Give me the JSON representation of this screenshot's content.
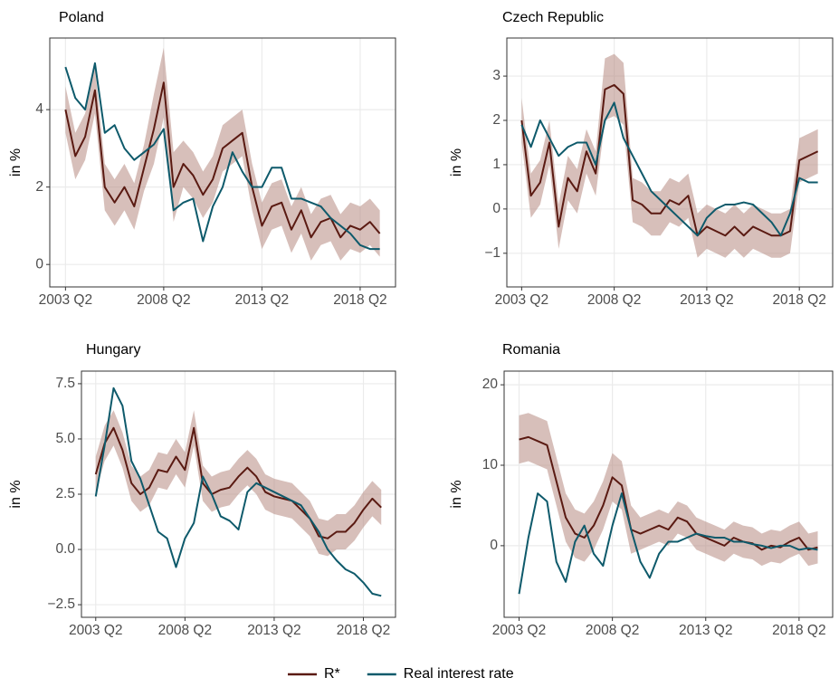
{
  "chart_data": [
    {
      "type": "line",
      "title": "Poland",
      "ylabel": "in %",
      "x": [
        2003.25,
        2003.75,
        2004.25,
        2004.75,
        2005.25,
        2005.75,
        2006.25,
        2006.75,
        2007.25,
        2007.75,
        2008.25,
        2008.75,
        2009.25,
        2009.75,
        2010.25,
        2010.75,
        2011.25,
        2011.75,
        2012.25,
        2012.75,
        2013.25,
        2013.75,
        2014.25,
        2014.75,
        2015.25,
        2015.75,
        2016.25,
        2016.75,
        2017.25,
        2017.75,
        2018.25,
        2018.75,
        2019.25
      ],
      "xlim": [
        2002.45,
        2020.05
      ],
      "xticks": [
        {
          "value": 2003.25,
          "label": "2003 Q2"
        },
        {
          "value": 2008.25,
          "label": "2008 Q2"
        },
        {
          "value": 2013.25,
          "label": "2013 Q2"
        },
        {
          "value": 2018.25,
          "label": "2018 Q2"
        }
      ],
      "ylim": [
        -0.58,
        5.85
      ],
      "yticks": [
        0,
        2,
        4
      ],
      "grid": true,
      "series": [
        {
          "name": "R*",
          "color": "#5a1a12",
          "band_color": "#b68a82",
          "values": [
            4.0,
            2.8,
            3.3,
            4.5,
            2.0,
            1.6,
            2.0,
            1.5,
            2.5,
            3.5,
            4.7,
            2.0,
            2.6,
            2.3,
            1.8,
            2.2,
            3.0,
            3.2,
            3.4,
            2.0,
            1.0,
            1.5,
            1.6,
            0.9,
            1.4,
            0.7,
            1.1,
            1.2,
            0.7,
            1.0,
            0.9,
            1.1,
            0.8
          ],
          "upper": [
            4.6,
            3.4,
            3.9,
            5.1,
            2.6,
            2.2,
            2.6,
            2.1,
            3.1,
            4.4,
            5.6,
            2.9,
            3.2,
            2.9,
            2.4,
            2.8,
            3.6,
            3.8,
            4.0,
            2.6,
            1.6,
            2.1,
            2.2,
            1.5,
            2.0,
            1.3,
            1.7,
            1.8,
            1.3,
            1.6,
            1.5,
            1.7,
            1.4
          ],
          "lower": [
            3.4,
            2.2,
            2.7,
            3.9,
            1.4,
            1.0,
            1.4,
            0.9,
            1.9,
            2.6,
            3.8,
            1.1,
            2.0,
            1.7,
            1.2,
            1.6,
            2.4,
            2.6,
            2.8,
            1.4,
            0.4,
            0.9,
            1.0,
            0.3,
            0.8,
            0.1,
            0.5,
            0.6,
            0.1,
            0.4,
            0.3,
            0.5,
            0.2
          ]
        },
        {
          "name": "Real interest rate",
          "color": "#0e5a6b",
          "values": [
            5.1,
            4.3,
            4.0,
            5.2,
            3.4,
            3.6,
            3.0,
            2.7,
            2.9,
            3.1,
            3.5,
            1.4,
            1.6,
            1.7,
            0.6,
            1.5,
            2.0,
            2.9,
            2.4,
            2.0,
            2.0,
            2.5,
            2.5,
            1.7,
            1.7,
            1.6,
            1.5,
            1.2,
            1.0,
            0.8,
            0.5,
            0.4,
            0.4
          ]
        }
      ]
    },
    {
      "type": "line",
      "title": "Czech Republic",
      "ylabel": "in %",
      "x": [
        2003.25,
        2003.75,
        2004.25,
        2004.75,
        2005.25,
        2005.75,
        2006.25,
        2006.75,
        2007.25,
        2007.75,
        2008.25,
        2008.75,
        2009.25,
        2009.75,
        2010.25,
        2010.75,
        2011.25,
        2011.75,
        2012.25,
        2012.75,
        2013.25,
        2013.75,
        2014.25,
        2014.75,
        2015.25,
        2015.75,
        2016.25,
        2016.75,
        2017.25,
        2017.75,
        2018.25,
        2018.75,
        2019.25
      ],
      "xlim": [
        2002.45,
        2020.05
      ],
      "xticks": [
        {
          "value": 2003.25,
          "label": "2003 Q2"
        },
        {
          "value": 2008.25,
          "label": "2008 Q2"
        },
        {
          "value": 2013.25,
          "label": "2013 Q2"
        },
        {
          "value": 2018.25,
          "label": "2018 Q2"
        }
      ],
      "ylim": [
        -1.76,
        3.86
      ],
      "yticks": [
        {
          "value": -1,
          "label": "−1"
        },
        0,
        1,
        2,
        3
      ],
      "grid": true,
      "series": [
        {
          "name": "R*",
          "color": "#5a1a12",
          "band_color": "#b68a82",
          "values": [
            2.0,
            0.3,
            0.6,
            1.5,
            -0.4,
            0.7,
            0.4,
            1.3,
            0.8,
            2.7,
            2.8,
            2.6,
            0.2,
            0.1,
            -0.1,
            -0.1,
            0.2,
            0.1,
            0.3,
            -0.6,
            -0.4,
            -0.5,
            -0.6,
            -0.4,
            -0.6,
            -0.4,
            -0.5,
            -0.6,
            -0.6,
            -0.5,
            1.1,
            1.2,
            1.3
          ],
          "upper": [
            2.5,
            0.8,
            1.1,
            2.0,
            0.1,
            1.2,
            0.9,
            1.8,
            1.3,
            3.4,
            3.5,
            3.3,
            0.7,
            0.6,
            0.4,
            0.4,
            0.7,
            0.6,
            0.8,
            -0.1,
            0.1,
            0,
            -0.1,
            0.1,
            -0.1,
            0.1,
            0,
            -0.1,
            -0.1,
            0,
            1.6,
            1.7,
            1.8
          ],
          "lower": [
            1.5,
            -0.2,
            0.1,
            1.0,
            -0.9,
            0.2,
            -0.1,
            0.8,
            0.3,
            2.0,
            2.1,
            1.9,
            -0.3,
            -0.4,
            -0.6,
            -0.6,
            -0.3,
            -0.4,
            -0.2,
            -1.1,
            -0.9,
            -1.0,
            -1.1,
            -0.9,
            -1.1,
            -0.9,
            -1.0,
            -1.1,
            -1.1,
            -1.0,
            0.6,
            0.7,
            0.8
          ]
        },
        {
          "name": "Real interest rate",
          "color": "#0e5a6b",
          "values": [
            1.9,
            1.4,
            2.0,
            1.6,
            1.2,
            1.4,
            1.5,
            1.5,
            1.0,
            2.0,
            2.4,
            1.6,
            1.2,
            0.8,
            0.4,
            0.2,
            0.0,
            -0.2,
            -0.4,
            -0.6,
            -0.2,
            0.0,
            0.1,
            0.1,
            0.15,
            0.1,
            -0.1,
            -0.3,
            -0.6,
            -0.1,
            0.7,
            0.6,
            0.6
          ]
        }
      ]
    },
    {
      "type": "line",
      "title": "Hungary",
      "ylabel": "in %",
      "x": [
        2003.25,
        2003.75,
        2004.25,
        2004.75,
        2005.25,
        2005.75,
        2006.25,
        2006.75,
        2007.25,
        2007.75,
        2008.25,
        2008.75,
        2009.25,
        2009.75,
        2010.25,
        2010.75,
        2011.25,
        2011.75,
        2012.25,
        2012.75,
        2013.25,
        2013.75,
        2014.25,
        2014.75,
        2015.25,
        2015.75,
        2016.25,
        2016.75,
        2017.25,
        2017.75,
        2018.25,
        2018.75,
        2019.25
      ],
      "xlim": [
        2002.45,
        2020.05
      ],
      "xticks": [
        {
          "value": 2003.25,
          "label": "2003 Q2"
        },
        {
          "value": 2008.25,
          "label": "2008 Q2"
        },
        {
          "value": 2013.25,
          "label": "2013 Q2"
        },
        {
          "value": 2018.25,
          "label": "2018 Q2"
        }
      ],
      "ylim": [
        -3.07,
        8.07
      ],
      "yticks": [
        {
          "value": -2.5,
          "label": "−2.5"
        },
        {
          "value": 0,
          "label": "0.0"
        },
        2.5,
        {
          "value": 5,
          "label": "5.0"
        },
        7.5
      ],
      "grid": true,
      "series": [
        {
          "name": "R*",
          "color": "#5a1a12",
          "band_color": "#b68a82",
          "values": [
            3.4,
            4.8,
            5.5,
            4.5,
            3.0,
            2.5,
            2.8,
            3.6,
            3.5,
            4.2,
            3.6,
            5.5,
            3.0,
            2.5,
            2.7,
            2.8,
            3.3,
            3.7,
            3.3,
            2.6,
            2.4,
            2.3,
            2.2,
            1.8,
            1.4,
            0.6,
            0.5,
            0.8,
            0.8,
            1.2,
            1.8,
            2.3,
            1.9
          ],
          "upper": [
            4.2,
            5.6,
            6.3,
            5.3,
            3.8,
            3.3,
            3.6,
            4.4,
            4.3,
            5.0,
            4.4,
            6.3,
            3.8,
            3.3,
            3.5,
            3.6,
            4.1,
            4.5,
            4.1,
            3.4,
            3.2,
            3.1,
            3.0,
            2.6,
            2.2,
            1.4,
            1.3,
            1.6,
            1.6,
            2.0,
            2.6,
            3.1,
            2.7
          ],
          "lower": [
            2.6,
            4.0,
            4.7,
            3.7,
            2.2,
            1.7,
            2.0,
            2.8,
            2.7,
            3.4,
            2.8,
            4.7,
            2.2,
            1.7,
            1.9,
            2.0,
            2.5,
            2.9,
            2.5,
            1.8,
            1.6,
            1.5,
            1.4,
            1.0,
            0.6,
            -0.2,
            -0.3,
            0,
            0,
            0.4,
            1.0,
            1.5,
            1.1
          ]
        },
        {
          "name": "Real interest rate",
          "color": "#0e5a6b",
          "values": [
            2.4,
            4.7,
            7.3,
            6.5,
            4.0,
            3.2,
            2.0,
            0.8,
            0.5,
            -0.8,
            0.5,
            1.2,
            3.3,
            2.5,
            1.5,
            1.3,
            0.9,
            2.6,
            3.0,
            2.8,
            2.6,
            2.4,
            2.2,
            2.0,
            1.4,
            0.8,
            0.0,
            -0.5,
            -0.9,
            -1.1,
            -1.5,
            -2.0,
            -2.1
          ]
        }
      ]
    },
    {
      "type": "line",
      "title": "Romania",
      "ylabel": "in %",
      "x": [
        2003.25,
        2003.75,
        2004.25,
        2004.75,
        2005.25,
        2005.75,
        2006.25,
        2006.75,
        2007.25,
        2007.75,
        2008.25,
        2008.75,
        2009.25,
        2009.75,
        2010.25,
        2010.75,
        2011.25,
        2011.75,
        2012.25,
        2012.75,
        2013.25,
        2013.75,
        2014.25,
        2014.75,
        2015.25,
        2015.75,
        2016.25,
        2016.75,
        2017.25,
        2017.75,
        2018.25,
        2018.75,
        2019.25
      ],
      "xlim": [
        2002.45,
        2020.05
      ],
      "xticks": [
        {
          "value": 2003.25,
          "label": "2003 Q2"
        },
        {
          "value": 2008.25,
          "label": "2008 Q2"
        },
        {
          "value": 2013.25,
          "label": "2013 Q2"
        },
        {
          "value": 2018.25,
          "label": "2018 Q2"
        }
      ],
      "ylim": [
        -8.9,
        21.7
      ],
      "yticks": [
        0,
        10,
        20
      ],
      "grid": true,
      "series": [
        {
          "name": "R*",
          "color": "#5a1a12",
          "band_color": "#b68a82",
          "values": [
            13.2,
            13.5,
            13.0,
            12.5,
            8.0,
            3.5,
            1.5,
            1.0,
            2.5,
            5.0,
            8.5,
            7.5,
            2.0,
            1.5,
            2.0,
            2.5,
            2.0,
            3.5,
            3.0,
            1.5,
            1.0,
            0.5,
            0.0,
            1.0,
            0.5,
            0.3,
            -0.5,
            0.0,
            -0.2,
            0.5,
            1.0,
            -0.5,
            -0.2
          ],
          "upper": [
            16.2,
            16.5,
            16.0,
            15.5,
            11.0,
            6.5,
            4.5,
            4.0,
            5.5,
            8.0,
            11.5,
            10.5,
            5.0,
            3.5,
            4.0,
            4.5,
            4.0,
            5.5,
            5.0,
            3.5,
            3.0,
            2.5,
            2.0,
            3.0,
            2.5,
            2.3,
            1.5,
            2.0,
            1.8,
            2.5,
            3.0,
            1.5,
            1.8
          ],
          "lower": [
            10.2,
            10.5,
            10.0,
            9.5,
            5.0,
            0.5,
            -1.5,
            -2.0,
            -0.5,
            2.0,
            5.5,
            4.5,
            -1.0,
            -0.5,
            0,
            0.5,
            0,
            1.5,
            1.0,
            -0.5,
            -1.0,
            -1.5,
            -2.0,
            -1.0,
            -1.5,
            -1.7,
            -2.5,
            -2.0,
            -2.2,
            -1.5,
            -1.0,
            -2.5,
            -2.2
          ]
        },
        {
          "name": "Real interest rate",
          "color": "#0e5a6b",
          "values": [
            -6,
            1.0,
            6.5,
            5.5,
            -2.0,
            -4.5,
            0.5,
            2.5,
            -1.0,
            -2.5,
            2.5,
            6.5,
            2.0,
            -2.0,
            -4.0,
            -1.0,
            0.5,
            0.5,
            1.0,
            1.5,
            1.2,
            1.0,
            1.0,
            0.5,
            0.5,
            0.2,
            0.0,
            -0.3,
            0.0,
            0.0,
            -0.5,
            -0.3,
            -0.5
          ]
        }
      ]
    }
  ]
}
